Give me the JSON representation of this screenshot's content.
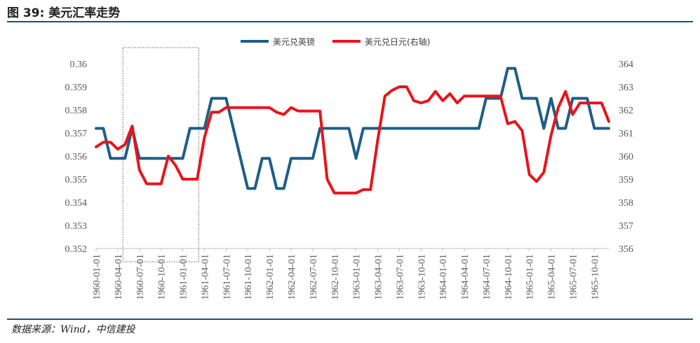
{
  "figure": {
    "title": "图 39: 美元汇率走势",
    "source": "数据来源：Wind，中信建投"
  },
  "colors": {
    "gbp": "#1f5e86",
    "jpy": "#e8141c",
    "axis": "#bfbfbf",
    "rule": "#1f4e79"
  },
  "chart_data": {
    "type": "line",
    "grid": false,
    "legend": "top-center",
    "x": [
      "1960-01-01",
      "1960-02-01",
      "1960-03-01",
      "1960-04-01",
      "1960-05-01",
      "1960-06-01",
      "1960-07-01",
      "1960-08-01",
      "1960-09-01",
      "1960-10-01",
      "1960-11-01",
      "1960-12-01",
      "1961-01-01",
      "1961-02-01",
      "1961-03-01",
      "1961-04-01",
      "1961-05-01",
      "1961-06-01",
      "1961-07-01",
      "1961-08-01",
      "1961-09-01",
      "1961-10-01",
      "1961-11-01",
      "1961-12-01",
      "1962-01-01",
      "1962-02-01",
      "1962-03-01",
      "1962-04-01",
      "1962-05-01",
      "1962-06-01",
      "1962-07-01",
      "1962-08-01",
      "1962-09-01",
      "1962-10-01",
      "1962-11-01",
      "1962-12-01",
      "1963-01-01",
      "1963-02-01",
      "1963-03-01",
      "1963-04-01",
      "1963-05-01",
      "1963-06-01",
      "1963-07-01",
      "1963-08-01",
      "1963-09-01",
      "1963-10-01",
      "1963-11-01",
      "1963-12-01",
      "1964-01-01",
      "1964-02-01",
      "1964-03-01",
      "1964-04-01",
      "1964-05-01",
      "1964-06-01",
      "1964-07-01",
      "1964-08-01",
      "1964-09-01",
      "1964-10-01",
      "1964-11-01",
      "1964-12-01",
      "1965-01-01",
      "1965-02-01",
      "1965-03-01",
      "1965-04-01",
      "1965-05-01",
      "1965-06-01",
      "1965-07-01",
      "1965-08-01",
      "1965-09-01",
      "1965-10-01",
      "1965-11-01",
      "1965-12-01"
    ],
    "x_tick_labels": [
      "1960-01-01",
      "1960-04-01",
      "1960-07-01",
      "1960-10-01",
      "1961-01-01",
      "1961-04-01",
      "1961-07-01",
      "1961-10-01",
      "1962-01-01",
      "1962-04-01",
      "1962-07-01",
      "1962-10-01",
      "1963-01-01",
      "1963-04-01",
      "1963-07-01",
      "1963-10-01",
      "1964-01-01",
      "1964-04-01",
      "1964-07-01",
      "1964-10-01",
      "1965-01-01",
      "1965-04-01",
      "1965-07-01",
      "1965-10-01"
    ],
    "y_left": {
      "ticks": [
        "0.352",
        "0.353",
        "0.354",
        "0.355",
        "0.356",
        "0.357",
        "0.358",
        "0.359",
        "0.36"
      ],
      "ylim": [
        0.352,
        0.36
      ]
    },
    "y_right": {
      "ticks": [
        "356",
        "357",
        "358",
        "359",
        "360",
        "361",
        "362",
        "363",
        "364"
      ],
      "ylim": [
        356,
        364
      ]
    },
    "series": [
      {
        "name": "美元兑英镑",
        "axis": "left",
        "values": [
          0.3572,
          0.3572,
          0.3559,
          0.3559,
          0.3559,
          0.3572,
          0.3559,
          0.3559,
          0.3559,
          0.3559,
          0.3559,
          0.3559,
          0.3559,
          0.3572,
          0.3572,
          0.3572,
          0.3585,
          0.3585,
          0.3585,
          0.3572,
          0.3559,
          0.3546,
          0.3546,
          0.3559,
          0.3559,
          0.3546,
          0.3546,
          0.3559,
          0.3559,
          0.3559,
          0.3559,
          0.3572,
          0.3572,
          0.3572,
          0.3572,
          0.3572,
          0.3559,
          0.3572,
          0.3572,
          0.3572,
          0.3572,
          0.3572,
          0.3572,
          0.3572,
          0.3572,
          0.3572,
          0.3572,
          0.3572,
          0.3572,
          0.3572,
          0.3572,
          0.3572,
          0.3572,
          0.3572,
          0.3585,
          0.3585,
          0.3585,
          0.3598,
          0.3598,
          0.3585,
          0.3585,
          0.3585,
          0.3572,
          0.3585,
          0.3572,
          0.3572,
          0.3585,
          0.3585,
          0.3585,
          0.3572,
          0.3572,
          0.3572
        ]
      },
      {
        "name": "美元兑日元(右轴)",
        "axis": "right",
        "values": [
          360.4,
          360.6,
          360.6,
          360.3,
          360.5,
          361.3,
          359.4,
          358.8,
          358.8,
          358.8,
          360.0,
          359.6,
          359.0,
          359.0,
          359.0,
          360.8,
          361.9,
          361.9,
          362.1,
          362.1,
          362.1,
          362.1,
          362.1,
          362.1,
          362.1,
          361.9,
          361.8,
          362.1,
          361.95,
          361.95,
          361.95,
          361.95,
          359.0,
          358.4,
          358.4,
          358.4,
          358.4,
          358.55,
          358.55,
          360.7,
          362.6,
          362.85,
          363.0,
          363.0,
          362.4,
          362.3,
          362.4,
          362.8,
          362.4,
          362.7,
          362.3,
          362.6,
          362.6,
          362.6,
          362.6,
          362.6,
          362.6,
          361.4,
          361.5,
          361.1,
          359.2,
          358.9,
          359.3,
          360.9,
          362.1,
          362.8,
          361.8,
          362.3,
          362.3,
          362.3,
          362.3,
          361.5
        ]
      }
    ],
    "annotations": [
      {
        "type": "dotted-rectangle",
        "from": "1960-05-01",
        "to": "1961-04-01"
      }
    ]
  }
}
